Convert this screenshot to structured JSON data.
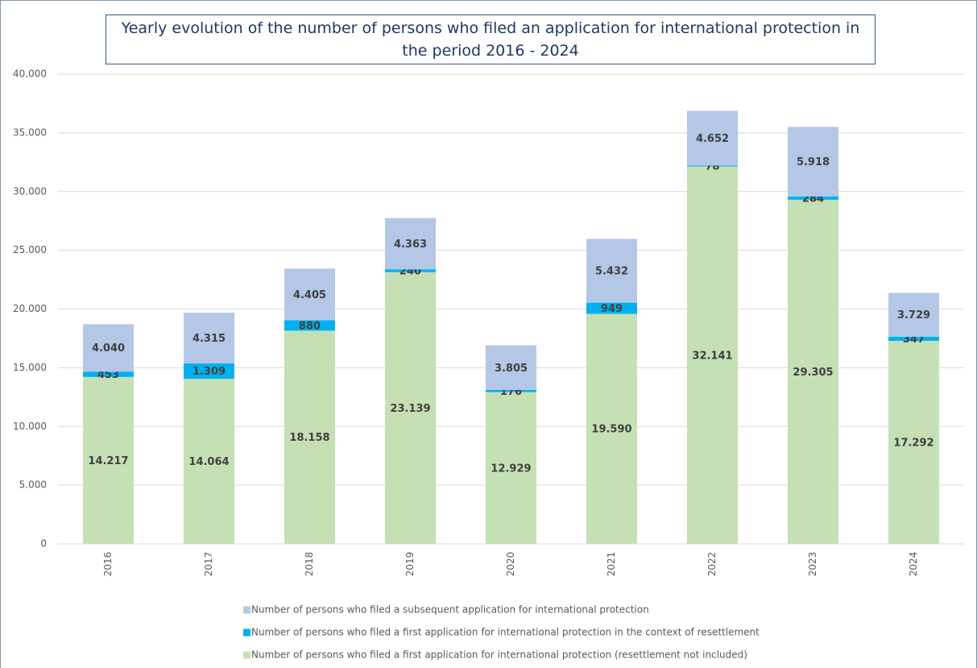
{
  "chart_data": {
    "type": "stacked_bar",
    "title": "Yearly evolution of the number of persons who filed an application for international protection in the period 2016 - 2024",
    "categories": [
      "2016",
      "2017",
      "2018",
      "2019",
      "2020",
      "2021",
      "2022",
      "2023",
      "2024"
    ],
    "series": [
      {
        "name": "Number of persons who filed a first application for international protection (resettlement not included)",
        "color": "#c5e0b4",
        "values": [
          14217,
          14064,
          18158,
          23139,
          12929,
          19590,
          32141,
          29305,
          17292
        ],
        "value_labels": [
          "14.217",
          "14.064",
          "18.158",
          "23.139",
          "12.929",
          "19.590",
          "32.141",
          "29.305",
          "17.292"
        ]
      },
      {
        "name": "Number of persons who filed a first application for international protection in the context of resettlement",
        "color": "#00b0f0",
        "values": [
          453,
          1309,
          880,
          240,
          176,
          949,
          78,
          284,
          347
        ],
        "value_labels": [
          "453",
          "1.309",
          "880",
          "240",
          "176",
          "949",
          "78",
          "284",
          "347"
        ]
      },
      {
        "name": "Number of persons who filed a subsequent application for international protection",
        "color": "#b4c7e7",
        "values": [
          4040,
          4315,
          4405,
          4363,
          3805,
          5432,
          4652,
          5918,
          3729
        ],
        "value_labels": [
          "4.040",
          "4.315",
          "4.405",
          "4.363",
          "3.805",
          "5.432",
          "4.652",
          "5.918",
          "3.729"
        ]
      }
    ],
    "ylim": [
      0,
      40000
    ],
    "yticks": [
      0,
      {
        "value": 5000,
        "label": "5.000"
      },
      {
        "value": 10000,
        "label": "10.000"
      },
      {
        "value": 15000,
        "label": "15.000"
      },
      {
        "value": 20000,
        "label": "20.000"
      },
      {
        "value": 25000,
        "label": "25.000"
      },
      {
        "value": 30000,
        "label": "30.000"
      },
      {
        "value": 35000,
        "label": "35.000"
      },
      {
        "value": 40000,
        "label": "40.000"
      }
    ],
    "grid": true
  }
}
